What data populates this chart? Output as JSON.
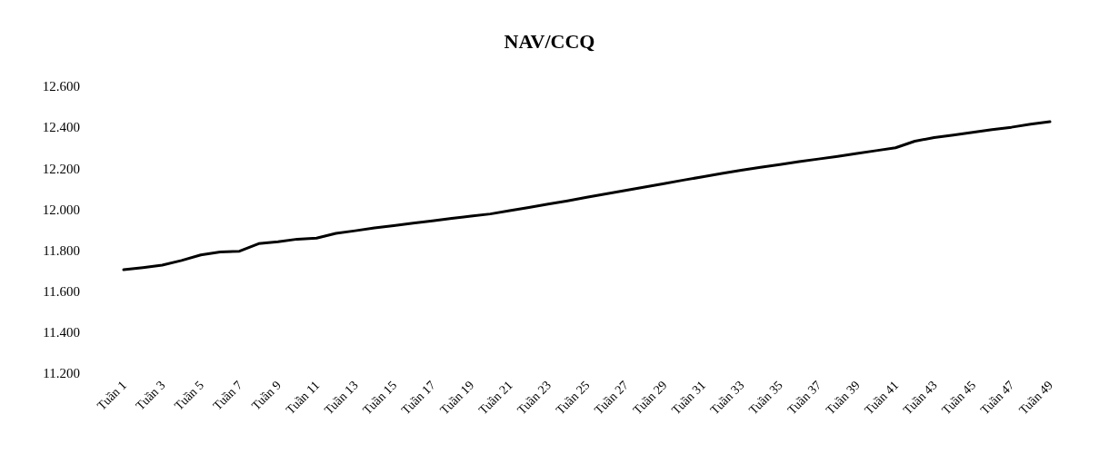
{
  "chart_data": {
    "type": "line",
    "title": "NAV/CCQ",
    "categories": [
      "Tuần 1",
      null,
      "Tuần 3",
      null,
      "Tuần 5",
      null,
      "Tuần 7",
      null,
      "Tuần 9",
      null,
      "Tuần 11",
      null,
      "Tuần 13",
      null,
      "Tuần 15",
      null,
      "Tuần 17",
      null,
      "Tuần 19",
      null,
      "Tuần 21",
      null,
      "Tuần 23",
      null,
      "Tuần 25",
      null,
      "Tuần 27",
      null,
      "Tuần 29",
      null,
      "Tuần 31",
      null,
      "Tuần 33",
      null,
      "Tuần 35",
      null,
      "Tuần 37",
      null,
      "Tuần 39",
      null,
      "Tuần 41",
      null,
      "Tuần 43",
      null,
      "Tuần 45",
      null,
      "Tuần 47",
      null,
      "Tuần 49"
    ],
    "series": [
      {
        "color": "#000000",
        "values": [
          11705,
          11715,
          11727,
          11750,
          11777,
          11791,
          11795,
          11832,
          11841,
          11854,
          11859,
          11882,
          11895,
          11909,
          11920,
          11932,
          11943,
          11955,
          11966,
          11977,
          11993,
          12009,
          12025,
          12041,
          12058,
          12075,
          12092,
          12108,
          12125,
          12142,
          12158,
          12175,
          12190,
          12205,
          12218,
          12232,
          12245,
          12258,
          12272,
          12286,
          12300,
          12332,
          12350,
          12362,
          12375,
          12388,
          12400,
          12415,
          12427
        ]
      }
    ],
    "ylim": [
      11200,
      12600
    ],
    "yticks": [
      {
        "value": 11200,
        "label": "11.200"
      },
      {
        "value": 11400,
        "label": "11.400"
      },
      {
        "value": 11600,
        "label": "11.600"
      },
      {
        "value": 11800,
        "label": "11.800"
      },
      {
        "value": 12000,
        "label": "12.000"
      },
      {
        "value": 12200,
        "label": "12.200"
      },
      {
        "value": 12400,
        "label": "12.400"
      },
      {
        "value": 12600,
        "label": "12.600"
      }
    ],
    "grid": false,
    "marker": "none",
    "line_style": "solid"
  }
}
